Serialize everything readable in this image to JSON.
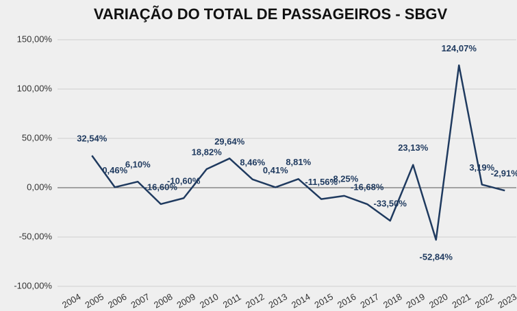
{
  "chart_data": {
    "type": "line",
    "title": "VARIAÇÃO DO TOTAL DE PASSAGEIROS - SBGV",
    "categories": [
      "2004",
      "2005",
      "2006",
      "2007",
      "2008",
      "2009",
      "2010",
      "2011",
      "2012",
      "2013",
      "2014",
      "2015",
      "2016",
      "2017",
      "2018",
      "2019",
      "2020",
      "2021",
      "2022",
      "2023"
    ],
    "series": [
      {
        "name": "Variação",
        "color": "#1f3a5f",
        "values": [
          null,
          32.54,
          0.46,
          6.1,
          -16.6,
          -10.6,
          18.82,
          29.64,
          8.46,
          0.41,
          8.81,
          -11.56,
          -8.25,
          -16.68,
          -33.5,
          23.13,
          -52.84,
          124.07,
          3.19,
          -2.91
        ],
        "value_labels": [
          null,
          "32,54%",
          "0,46%",
          "6,10%",
          "-16,60%",
          "-10,60%",
          "18,82%",
          "29,64%",
          "8,46%",
          "0,41%",
          "8,81%",
          "-11,56%",
          "-8,25%",
          "-16,68%",
          "-33,50%",
          "23,13%",
          "-52,84%",
          "124,07%",
          "3,19%",
          "-2,91%"
        ]
      }
    ],
    "ylim": [
      -100,
      150
    ],
    "yticks": [
      {
        "value": -100,
        "label": "-100,00%"
      },
      {
        "value": -50,
        "label": "-50,00%"
      },
      {
        "value": 0,
        "label": "0,00%"
      },
      {
        "value": 50,
        "label": "50,00%"
      },
      {
        "value": 100,
        "label": "100,00%"
      },
      {
        "value": 150,
        "label": "150,00%"
      }
    ],
    "grid": true
  }
}
